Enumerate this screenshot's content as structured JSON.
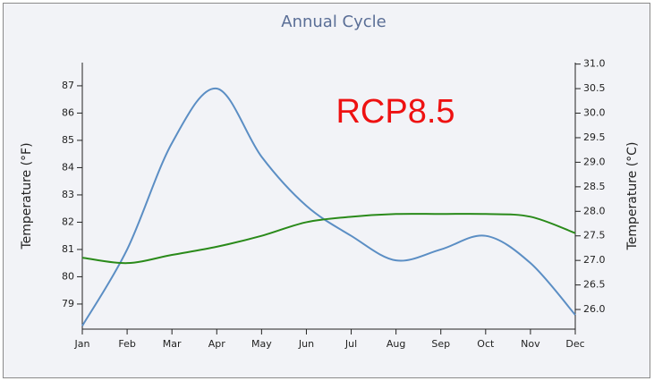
{
  "chart_data": {
    "type": "line",
    "title": "Annual Cycle",
    "annotation": "RCP8.5",
    "ylabel": "Temperature (°F)",
    "y2label": "Temperature (°C)",
    "categories": [
      "Jan",
      "Feb",
      "Mar",
      "Apr",
      "May",
      "Jun",
      "Jul",
      "Aug",
      "Sep",
      "Oct",
      "Nov",
      "Dec"
    ],
    "ylim": [
      78.08,
      87.85
    ],
    "yticks": [
      79,
      80,
      81,
      82,
      83,
      84,
      85,
      86,
      87
    ],
    "y2lim": [
      25.6,
      31.03
    ],
    "y2ticks": [
      {
        "value": 26,
        "label": "26.0"
      },
      26.5,
      {
        "value": 27,
        "label": "27.0"
      },
      27.5,
      {
        "value": 28,
        "label": "28.0"
      },
      28.5,
      {
        "value": 29,
        "label": "29.0"
      },
      29.5,
      {
        "value": 30,
        "label": "30.0"
      },
      30.5,
      {
        "value": 31,
        "label": "31.0"
      }
    ],
    "series": [
      {
        "color": "#5b8ec4",
        "values": [
          78.2,
          81.0,
          84.9,
          86.9,
          84.4,
          82.6,
          81.5,
          80.6,
          81.0,
          81.5,
          80.5,
          78.6
        ]
      },
      {
        "color": "#2a8a1a",
        "values": [
          80.7,
          80.5,
          80.8,
          81.1,
          81.5,
          82.0,
          82.2,
          82.3,
          82.3,
          82.3,
          82.2,
          81.6
        ]
      }
    ]
  }
}
